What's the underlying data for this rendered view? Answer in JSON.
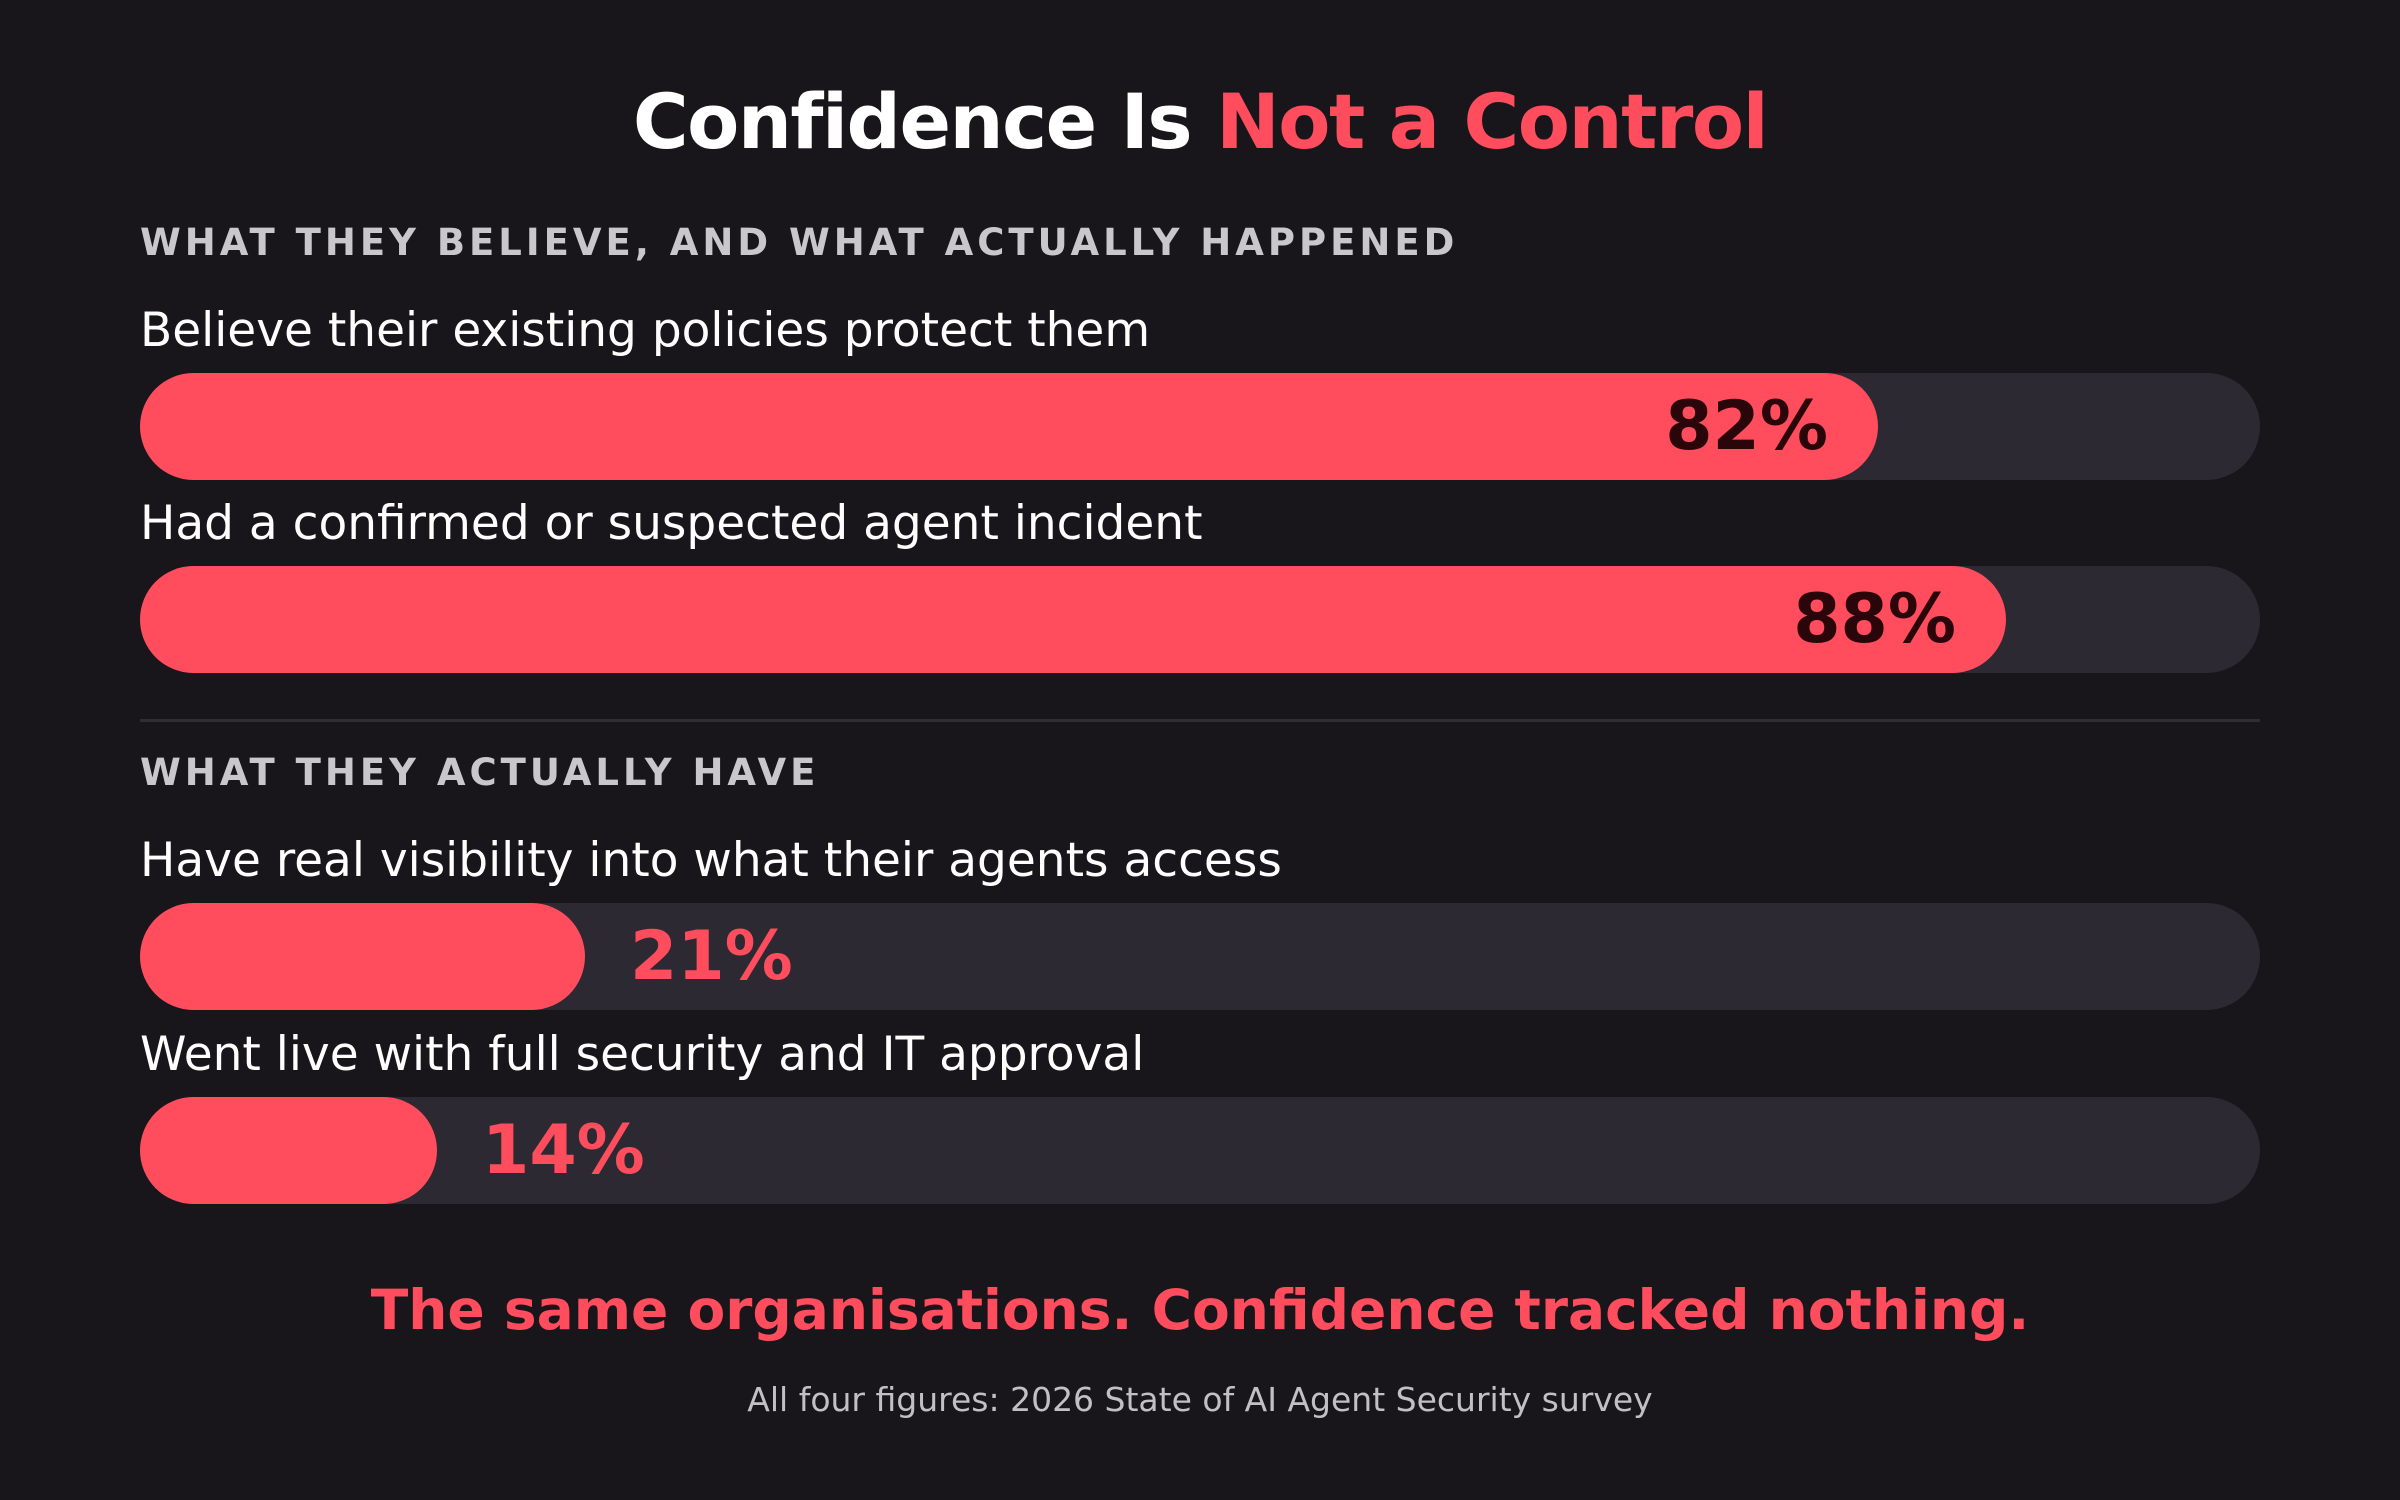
{
  "title": {
    "part1": "Confidence Is ",
    "part2": "Not a Control"
  },
  "sections": [
    {
      "label": "WHAT THEY BELIEVE, AND WHAT ACTUALLY HAPPENED"
    },
    {
      "label": "WHAT THEY ACTUALLY HAVE"
    }
  ],
  "conclusion": "The same organisations. Confidence tracked nothing.",
  "source": "All four figures: 2026 State of AI Agent Security survey",
  "colors": {
    "background": "#18161b",
    "accent": "#ff4d5e",
    "track": "#2c2933"
  },
  "chart_data": {
    "type": "bar",
    "orientation": "horizontal",
    "xlim": [
      0,
      100
    ],
    "categories": [
      "Believe their existing policies protect them",
      "Had a confirmed or suspected agent incident",
      "Have real visibility into what their agents access",
      "Went live with full security and IT approval"
    ],
    "values": [
      82,
      88,
      21,
      14
    ],
    "value_labels": [
      "82%",
      "88%",
      "21%",
      "14%"
    ],
    "groups": [
      "WHAT THEY BELIEVE, AND WHAT ACTUALLY HAPPENED",
      "WHAT THEY BELIEVE, AND WHAT ACTUALLY HAPPENED",
      "WHAT THEY ACTUALLY HAVE",
      "WHAT THEY ACTUALLY HAVE"
    ]
  }
}
